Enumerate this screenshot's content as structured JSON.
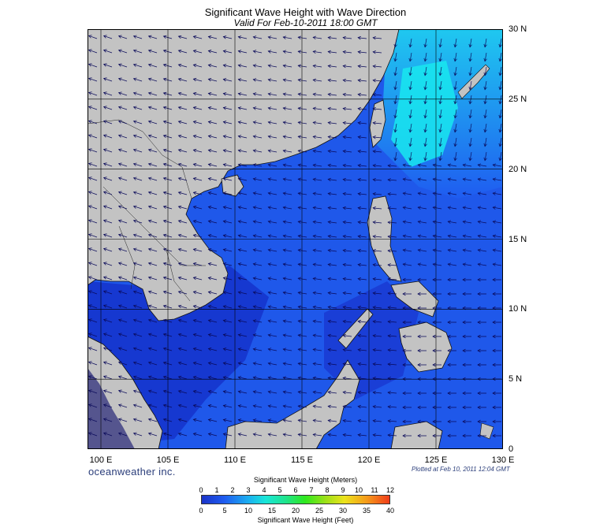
{
  "title": "Significant Wave Height with Wave Direction",
  "subtitle": "Valid For Feb-10-2011 18:00 GMT",
  "lon_labels": [
    "100 E",
    "105 E",
    "110 E",
    "115 E",
    "120 E",
    "125 E",
    "130 E"
  ],
  "lat_labels": [
    "30 N",
    "25 N",
    "20 N",
    "15 N",
    "10 N",
    "5 N",
    "0"
  ],
  "brand": "oceanweather inc.",
  "plotted": "Plotted at Feb 10, 2011 12:04 GMT",
  "legend": {
    "meters_title": "Significant Wave Height (Meters)",
    "meters_ticks": [
      "0",
      "1",
      "2",
      "3",
      "4",
      "5",
      "6",
      "7",
      "8",
      "9",
      "10",
      "11",
      "12"
    ],
    "feet_title": "Significant Wave Height (Feet)",
    "feet_ticks": [
      "0",
      "5",
      "10",
      "15",
      "20",
      "25",
      "30",
      "35",
      "40"
    ]
  },
  "colors": {
    "land": "#c3c3c3",
    "wave_low": "#1a33c8",
    "wave_mid": "#1f5cf0",
    "wave_high": "#19d6e8",
    "arrow": "#0a0a5a",
    "grid": "#000000"
  },
  "map_extent": {
    "lon": [
      99,
      130
    ],
    "lat": [
      0,
      30
    ]
  }
}
